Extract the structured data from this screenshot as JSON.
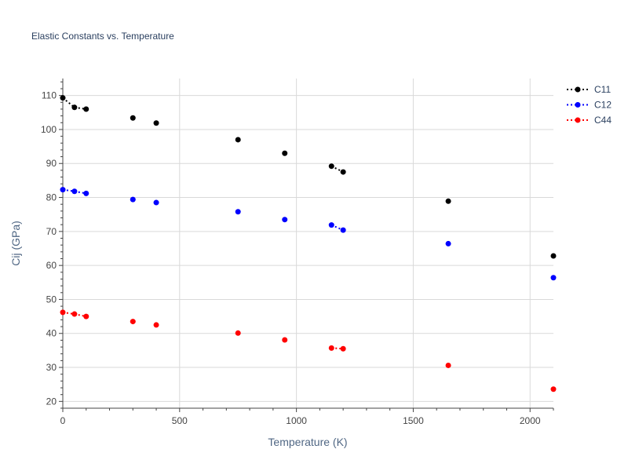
{
  "chart_data": {
    "type": "scatter",
    "title": "Elastic Constants vs. Temperature",
    "xlabel": "Temperature (K)",
    "ylabel": "Cij (GPa)",
    "xlim": [
      0,
      2100
    ],
    "ylim": [
      18,
      115
    ],
    "xticks": [
      0,
      500,
      1000,
      1500,
      2000
    ],
    "yticks": [
      20,
      30,
      40,
      50,
      60,
      70,
      80,
      90,
      100,
      110
    ],
    "grid": true,
    "legend_position": "top-right",
    "series": [
      {
        "name": "C11",
        "color": "#000000",
        "x": [
          0,
          50,
          100,
          300,
          400,
          750,
          950,
          1150,
          1200,
          1650,
          2100
        ],
        "y": [
          109.3,
          106.5,
          106.0,
          103.4,
          101.9,
          97.0,
          93.0,
          89.2,
          87.5,
          78.9,
          62.8
        ],
        "dotted_segments": [
          [
            0,
            1
          ],
          [
            1,
            2
          ],
          [
            7,
            8
          ]
        ]
      },
      {
        "name": "C12",
        "color": "#0000ff",
        "x": [
          0,
          50,
          100,
          300,
          400,
          750,
          950,
          1150,
          1200,
          1650,
          2100
        ],
        "y": [
          82.3,
          81.8,
          81.2,
          79.4,
          78.5,
          75.8,
          73.5,
          71.9,
          70.4,
          66.4,
          56.4
        ],
        "dotted_segments": [
          [
            0,
            1
          ],
          [
            1,
            2
          ],
          [
            7,
            8
          ]
        ]
      },
      {
        "name": "C44",
        "color": "#ff0000",
        "x": [
          0,
          50,
          100,
          300,
          400,
          750,
          950,
          1150,
          1200,
          1650,
          2100
        ],
        "y": [
          46.2,
          45.7,
          45.0,
          43.5,
          42.5,
          40.1,
          38.1,
          35.7,
          35.5,
          30.6,
          23.6
        ],
        "dotted_segments": [
          [
            0,
            1
          ],
          [
            1,
            2
          ],
          [
            7,
            8
          ]
        ]
      }
    ]
  }
}
